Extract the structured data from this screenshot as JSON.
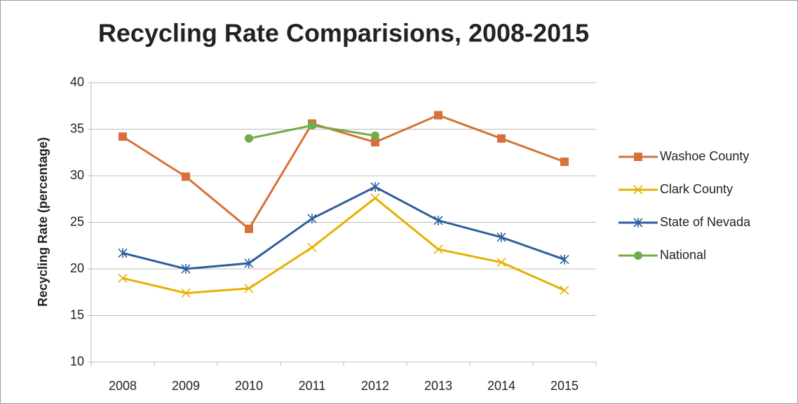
{
  "chart_data": {
    "type": "line",
    "title": "Recycling Rate Comparisions, 2008-2015",
    "y_label": "Recycling Rate (percentage)",
    "categories": [
      "2008",
      "2009",
      "2010",
      "2011",
      "2012",
      "2013",
      "2014",
      "2015"
    ],
    "series": [
      {
        "name": "Washoe County",
        "color": "#d9703a",
        "marker": "square",
        "values": [
          34.2,
          29.9,
          24.3,
          35.6,
          33.6,
          36.5,
          34.0,
          31.5
        ]
      },
      {
        "name": "Clark County",
        "color": "#e6b000",
        "marker": "x",
        "values": [
          19.0,
          17.4,
          17.9,
          22.3,
          27.6,
          22.1,
          20.7,
          17.7
        ]
      },
      {
        "name": "State of Nevada",
        "color": "#2e5e9e",
        "marker": "star",
        "values": [
          21.7,
          20.0,
          20.6,
          25.4,
          28.8,
          25.2,
          23.4,
          21.0
        ]
      },
      {
        "name": "National",
        "color": "#70ad47",
        "marker": "circle",
        "values": [
          null,
          null,
          34.0,
          35.4,
          34.3,
          null,
          null,
          null
        ]
      }
    ],
    "ylim": [
      10,
      40
    ],
    "yticks": [
      10,
      15,
      20,
      25,
      30,
      35,
      40
    ],
    "grid": true,
    "legend": "right"
  }
}
